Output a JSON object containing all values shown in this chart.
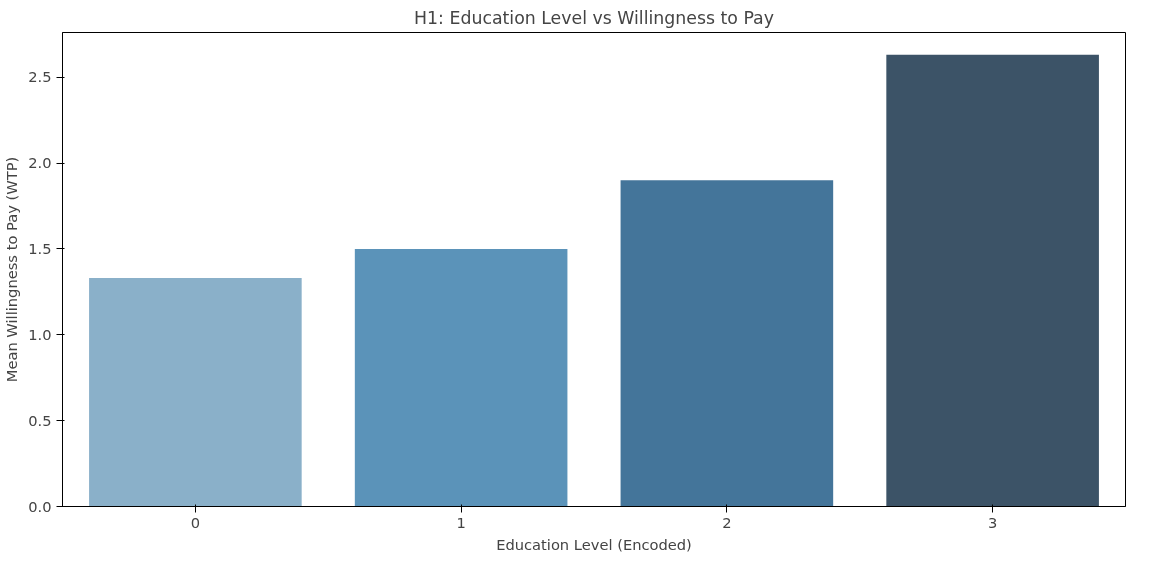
{
  "chart_data": {
    "type": "bar",
    "title": "H1: Education Level vs Willingness to Pay",
    "xlabel": "Education Level (Encoded)",
    "ylabel": "Mean Willingness to Pay (WTP)",
    "categories": [
      "0",
      "1",
      "2",
      "3"
    ],
    "values": [
      1.33,
      1.5,
      1.9,
      2.63
    ],
    "colors": [
      "#8ab0c9",
      "#5b93b9",
      "#44759a",
      "#3c5367"
    ],
    "ylim": [
      0,
      2.76
    ],
    "yticks": [
      {
        "value": 0,
        "label": "0.0"
      },
      {
        "value": 0.5,
        "label": "0.5"
      },
      {
        "value": 1,
        "label": "1.0"
      },
      {
        "value": 1.5,
        "label": "1.5"
      },
      {
        "value": 2,
        "label": "2.0"
      },
      {
        "value": 2.5,
        "label": "2.5"
      }
    ],
    "grid": false
  }
}
